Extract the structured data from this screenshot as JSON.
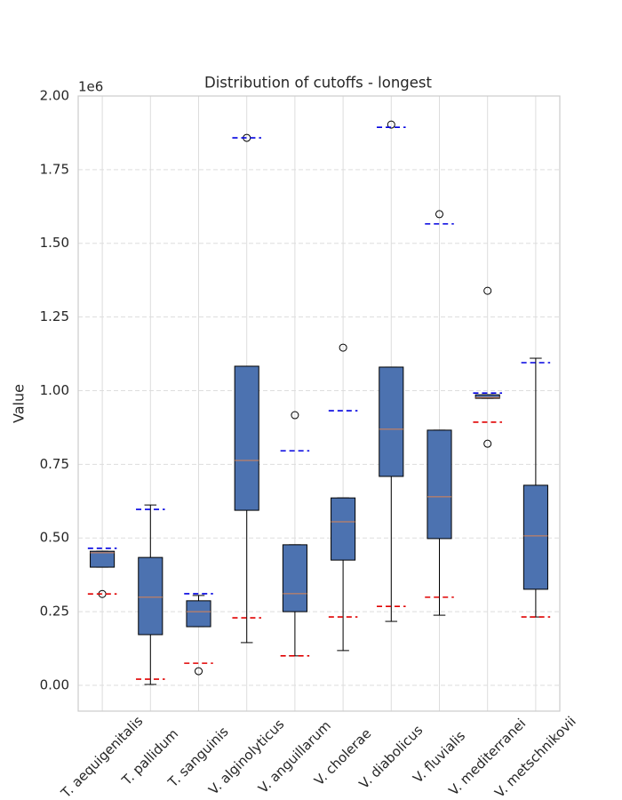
{
  "chart_data": {
    "type": "box",
    "title": "Distribution of cutoffs - longest",
    "ylabel": "Value",
    "y_offset_label": "1e6",
    "categories": [
      "T. aequigenitalis",
      "T. pallidum",
      "T. sanguinis",
      "V. alginolyticus",
      "V. anguillarum",
      "V. cholerae",
      "V. diabolicus",
      "V. fluvialis",
      "V. mediterranei",
      "V. metschnikovii"
    ],
    "boxes": [
      {
        "whislo": 0.401,
        "q1": 0.401,
        "med": 0.45,
        "q3": 0.455,
        "whishi": 0.455,
        "fliers": [
          0.31
        ]
      },
      {
        "whislo": 0.003,
        "q1": 0.172,
        "med": 0.299,
        "q3": 0.434,
        "whishi": 0.612,
        "fliers": []
      },
      {
        "whislo": 0.199,
        "q1": 0.199,
        "med": 0.25,
        "q3": 0.287,
        "whishi": 0.305,
        "fliers": [
          0.048
        ]
      },
      {
        "whislo": 0.145,
        "q1": 0.594,
        "med": 0.763,
        "q3": 1.083,
        "whishi": 1.083,
        "fliers": [
          1.858
        ]
      },
      {
        "whislo": 0.1,
        "q1": 0.25,
        "med": 0.311,
        "q3": 0.477,
        "whishi": 0.477,
        "fliers": [
          0.917
        ]
      },
      {
        "whislo": 0.118,
        "q1": 0.425,
        "med": 0.555,
        "q3": 0.636,
        "whishi": 0.636,
        "fliers": [
          1.146
        ]
      },
      {
        "whislo": 0.217,
        "q1": 0.709,
        "med": 0.869,
        "q3": 1.08,
        "whishi": 1.08,
        "fliers": [
          1.903
        ]
      },
      {
        "whislo": 0.238,
        "q1": 0.498,
        "med": 0.64,
        "q3": 0.866,
        "whishi": 0.866,
        "fliers": [
          1.599
        ]
      },
      {
        "whislo": 0.974,
        "q1": 0.974,
        "med": 0.977,
        "q3": 0.986,
        "whishi": 0.986,
        "fliers": [
          1.339,
          0.82
        ]
      },
      {
        "whislo": 0.232,
        "q1": 0.326,
        "med": 0.507,
        "q3": 0.679,
        "whishi": 1.11,
        "fliers": []
      }
    ],
    "box_color": "#4c72b0",
    "median_color": "#dd8452",
    "low_marks": {
      "color": "#e00000",
      "values": [
        0.31,
        0.021,
        0.075,
        0.229,
        0.1,
        0.232,
        0.268,
        0.299,
        0.893,
        0.232
      ]
    },
    "high_marks": {
      "color": "#0000e0",
      "values": [
        0.465,
        0.597,
        0.311,
        1.858,
        0.796,
        0.932,
        1.894,
        1.566,
        0.992,
        1.095
      ]
    },
    "ylim": [
      -0.0875,
      2.0
    ],
    "yticks": [
      {
        "value": 0,
        "label": "0.00"
      },
      0.25,
      {
        "value": 0.5,
        "label": "0.50"
      },
      0.75,
      {
        "value": 1,
        "label": "1.00"
      },
      1.25,
      {
        "value": 1.5,
        "label": "1.50"
      },
      1.75,
      {
        "value": 2,
        "label": "2.00"
      }
    ],
    "grid": true
  }
}
